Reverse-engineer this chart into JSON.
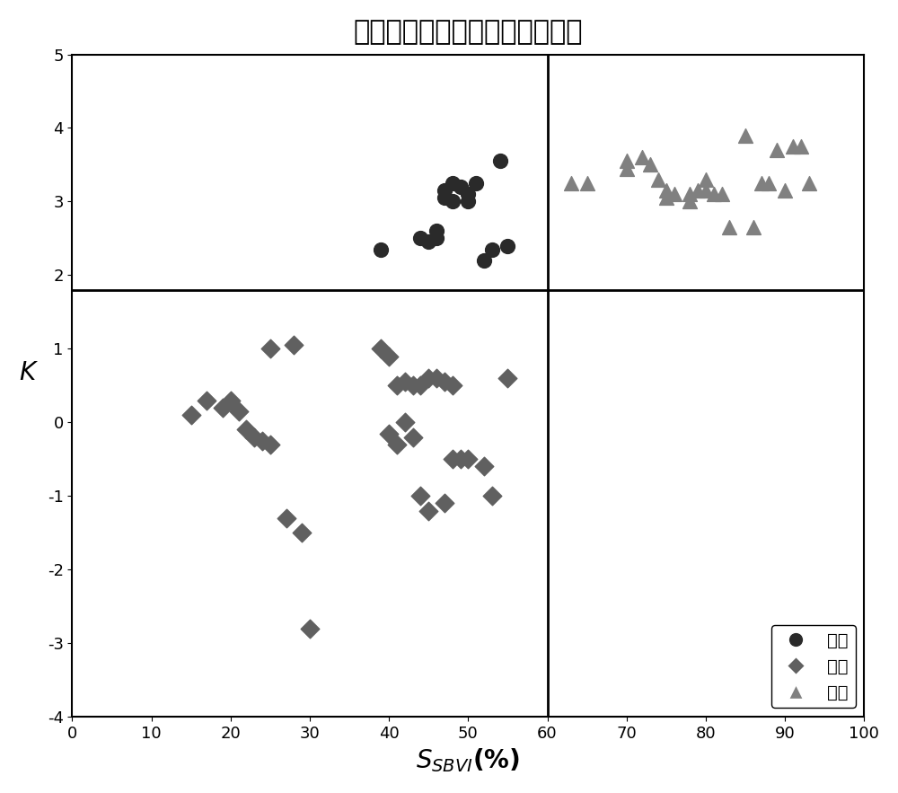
{
  "title": "核磁共振测井识别稠油储层图版",
  "ylabel": "$K$",
  "xlim": [
    0,
    100
  ],
  "ylim": [
    -4,
    5
  ],
  "xticks": [
    0,
    10,
    20,
    30,
    40,
    50,
    60,
    70,
    80,
    90,
    100
  ],
  "yticks": [
    -4,
    -3,
    -2,
    -1,
    0,
    1,
    2,
    3,
    4,
    5
  ],
  "hline_y": 1.8,
  "vline_x": 60,
  "oil_color": "#2a2a2a",
  "water_color": "#606060",
  "dry_color": "#808080",
  "oil_points": [
    [
      39,
      2.35
    ],
    [
      44,
      2.5
    ],
    [
      45,
      2.45
    ],
    [
      46,
      2.6
    ],
    [
      46,
      2.5
    ],
    [
      47,
      3.15
    ],
    [
      47,
      3.05
    ],
    [
      48,
      3.25
    ],
    [
      48,
      3.0
    ],
    [
      49,
      3.2
    ],
    [
      50,
      3.1
    ],
    [
      50,
      3.0
    ],
    [
      51,
      3.25
    ],
    [
      52,
      2.2
    ],
    [
      53,
      2.35
    ],
    [
      54,
      3.55
    ],
    [
      55,
      2.4
    ]
  ],
  "water_points": [
    [
      15,
      0.1
    ],
    [
      17,
      0.3
    ],
    [
      19,
      0.2
    ],
    [
      20,
      0.3
    ],
    [
      21,
      0.15
    ],
    [
      22,
      -0.1
    ],
    [
      23,
      -0.2
    ],
    [
      24,
      -0.25
    ],
    [
      25,
      -0.3
    ],
    [
      25,
      1.0
    ],
    [
      27,
      -1.3
    ],
    [
      28,
      1.05
    ],
    [
      29,
      -1.5
    ],
    [
      30,
      -2.8
    ],
    [
      39,
      1.0
    ],
    [
      40,
      0.9
    ],
    [
      40,
      -0.15
    ],
    [
      41,
      0.5
    ],
    [
      41,
      -0.3
    ],
    [
      42,
      0.55
    ],
    [
      42,
      0.0
    ],
    [
      43,
      0.5
    ],
    [
      43,
      -0.2
    ],
    [
      44,
      0.5
    ],
    [
      44,
      -1.0
    ],
    [
      45,
      0.6
    ],
    [
      45,
      -1.2
    ],
    [
      46,
      0.6
    ],
    [
      47,
      -1.1
    ],
    [
      47,
      0.55
    ],
    [
      48,
      0.5
    ],
    [
      48,
      -0.5
    ],
    [
      49,
      -0.5
    ],
    [
      50,
      -0.5
    ],
    [
      52,
      -0.6
    ],
    [
      53,
      -1.0
    ],
    [
      55,
      0.6
    ]
  ],
  "dry_points": [
    [
      63,
      3.25
    ],
    [
      65,
      3.25
    ],
    [
      70,
      3.55
    ],
    [
      70,
      3.45
    ],
    [
      72,
      3.6
    ],
    [
      73,
      3.5
    ],
    [
      74,
      3.3
    ],
    [
      75,
      3.15
    ],
    [
      75,
      3.05
    ],
    [
      76,
      3.1
    ],
    [
      78,
      3.1
    ],
    [
      78,
      3.0
    ],
    [
      79,
      3.15
    ],
    [
      80,
      3.3
    ],
    [
      80,
      3.15
    ],
    [
      81,
      3.1
    ],
    [
      82,
      3.1
    ],
    [
      83,
      2.65
    ],
    [
      85,
      3.9
    ],
    [
      86,
      2.65
    ],
    [
      87,
      3.25
    ],
    [
      88,
      3.25
    ],
    [
      89,
      3.7
    ],
    [
      90,
      3.15
    ],
    [
      91,
      3.75
    ],
    [
      92,
      3.75
    ],
    [
      93,
      3.25
    ]
  ],
  "legend_oil": "油层",
  "legend_water": "水层",
  "legend_dry": "干层"
}
